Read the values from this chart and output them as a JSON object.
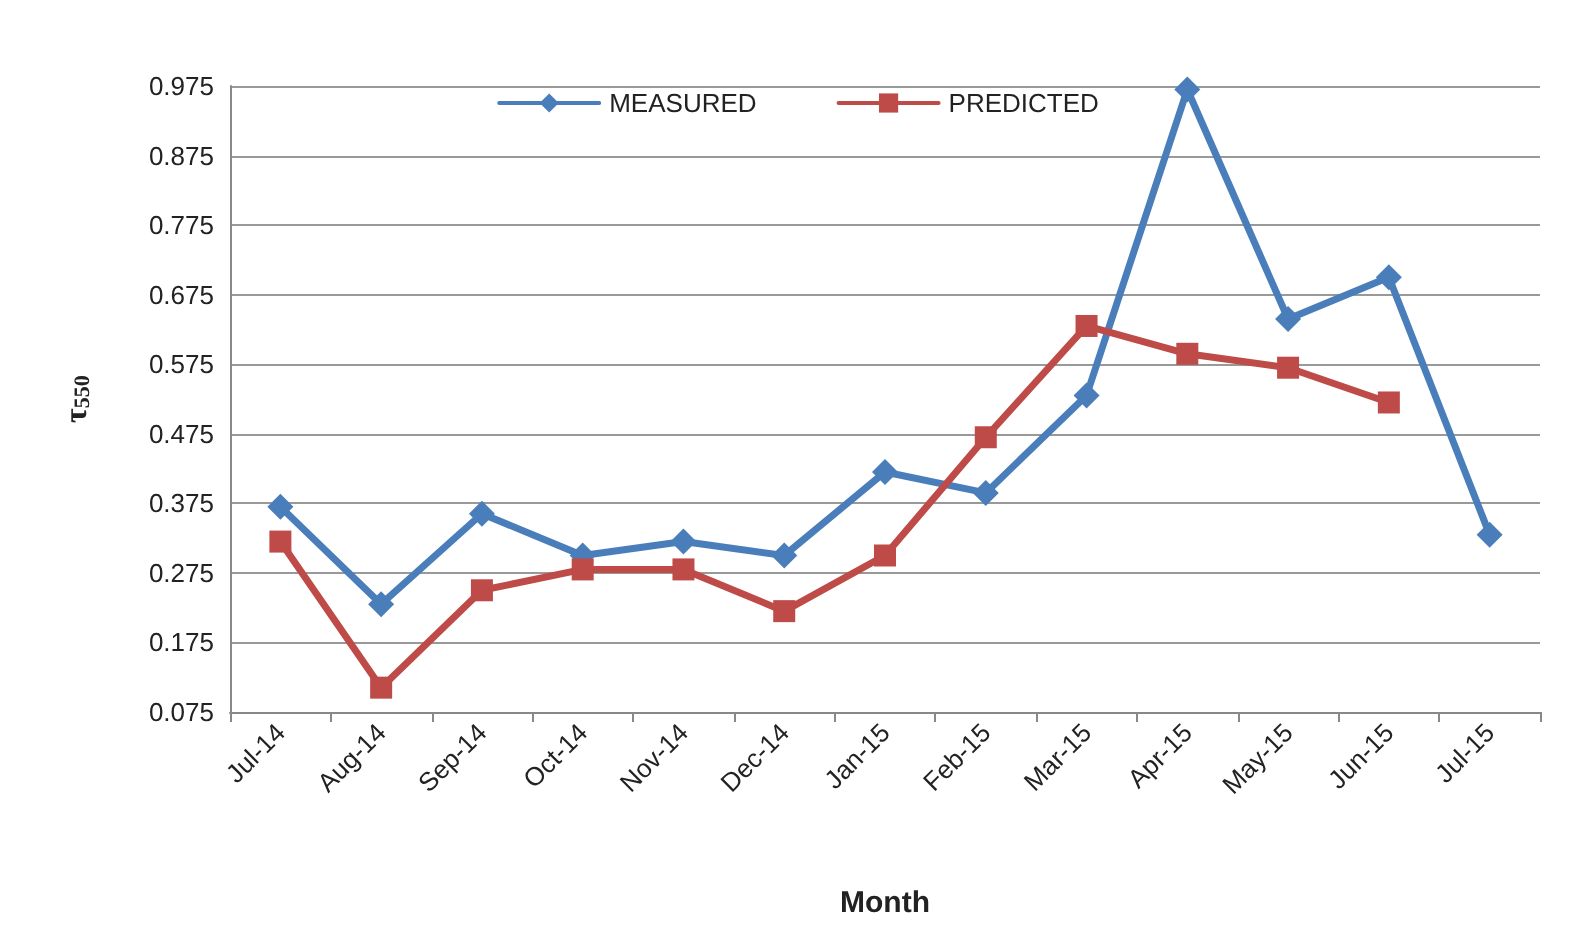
{
  "chart_data": {
    "type": "line",
    "xlabel": "Month",
    "ylabel": "τ$_{550}$",
    "categories": [
      "Jul-14",
      "Aug-14",
      "Sep-14",
      "Oct-14",
      "Nov-14",
      "Dec-14",
      "Jan-15",
      "Feb-15",
      "Mar-15",
      "Apr-15",
      "May-15",
      "Jun-15",
      "Jul-15"
    ],
    "series": [
      {
        "name": "MEASURED",
        "color": "#4a7ebb",
        "marker": "diamond",
        "values": [
          0.37,
          0.23,
          0.36,
          0.3,
          0.32,
          0.3,
          0.42,
          0.39,
          0.53,
          0.97,
          0.64,
          0.7,
          0.33
        ]
      },
      {
        "name": "PREDICTED",
        "color": "#be4b48",
        "marker": "square",
        "values": [
          0.32,
          0.11,
          0.25,
          0.28,
          0.28,
          0.22,
          0.3,
          0.47,
          0.63,
          0.59,
          0.57,
          0.52,
          null
        ]
      }
    ],
    "ylim": [
      0.075,
      0.975
    ],
    "yticks": [
      0.075,
      0.175,
      0.275,
      0.375,
      0.475,
      0.575,
      0.675,
      0.775,
      0.875,
      0.975
    ],
    "grid": "y",
    "legend": "top",
    "line_style": "solid"
  }
}
